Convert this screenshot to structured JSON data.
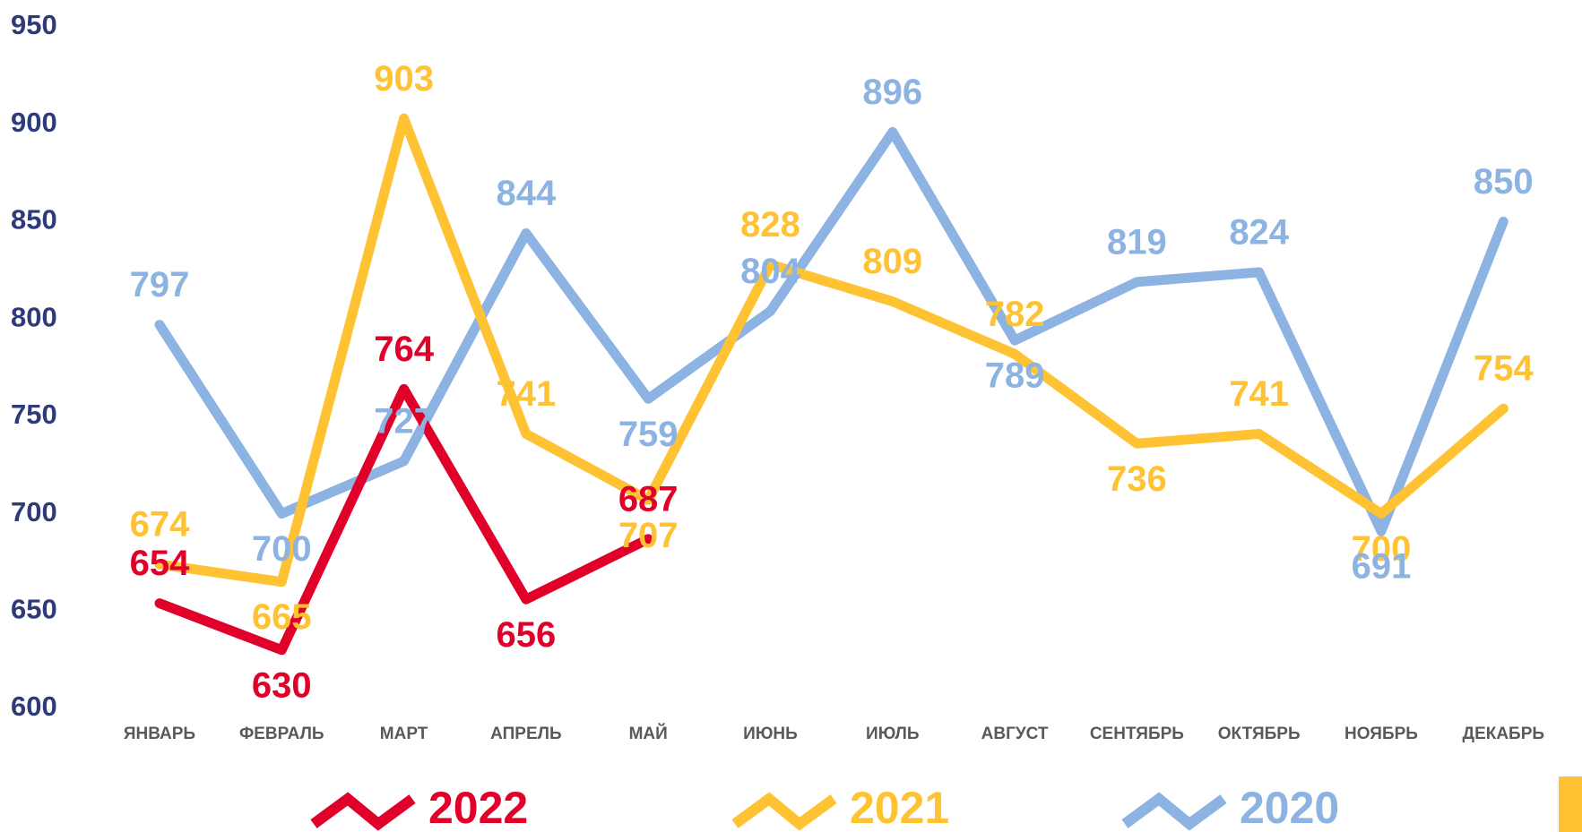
{
  "chart_data": {
    "type": "line",
    "categories": [
      "ЯНВАРЬ",
      "ФЕВРАЛЬ",
      "МАРТ",
      "АПРЕЛЬ",
      "МАЙ",
      "ИЮНЬ",
      "ИЮЛЬ",
      "АВГУСТ",
      "СЕНТЯБРЬ",
      "ОКТЯБРЬ",
      "НОЯБРЬ",
      "ДЕКАБРЬ"
    ],
    "series": [
      {
        "name": "2022",
        "color": "#e0002a",
        "values": [
          654,
          630,
          764,
          656,
          687,
          null,
          null,
          null,
          null,
          null,
          null,
          null
        ]
      },
      {
        "name": "2021",
        "color": "#fec232",
        "values": [
          674,
          665,
          903,
          741,
          707,
          828,
          809,
          782,
          736,
          741,
          700,
          754
        ]
      },
      {
        "name": "2020",
        "color": "#8db3e2",
        "values": [
          797,
          700,
          727,
          844,
          759,
          804,
          896,
          789,
          819,
          824,
          691,
          850
        ]
      }
    ],
    "ylim": [
      600,
      950
    ],
    "yticks": [
      600,
      650,
      700,
      750,
      800,
      850,
      900,
      950
    ],
    "grid": false
  }
}
